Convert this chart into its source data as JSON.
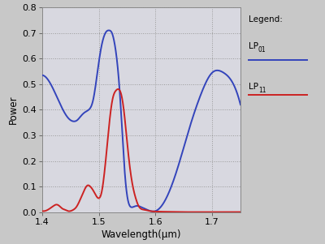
{
  "title": "",
  "xlabel": "Wavelength(μm)",
  "ylabel": "Power",
  "xlim": [
    1.4,
    1.75
  ],
  "ylim": [
    0.0,
    0.8
  ],
  "xticks": [
    1.4,
    1.5,
    1.6,
    1.7
  ],
  "yticks": [
    0.0,
    0.1,
    0.2,
    0.3,
    0.4,
    0.5,
    0.6,
    0.7,
    0.8
  ],
  "fig_bg_color": "#c8c8c8",
  "plot_bg_color": "#d8d8e0",
  "blue_color": "#3344bb",
  "red_color": "#cc2222",
  "legend_title": "Legend:",
  "lp01_label": "LP",
  "lp01_sub": "01",
  "lp11_label": "LP",
  "lp11_sub": "11",
  "blue_x": [
    1.4,
    1.415,
    1.43,
    1.445,
    1.455,
    1.462,
    1.468,
    1.475,
    1.482,
    1.49,
    1.497,
    1.503,
    1.508,
    1.513,
    1.518,
    1.523,
    1.528,
    1.533,
    1.538,
    1.542,
    1.547,
    1.552,
    1.557,
    1.562,
    1.567,
    1.575,
    1.585,
    1.6,
    1.62,
    1.64,
    1.66,
    1.68,
    1.7,
    1.72,
    1.735,
    1.75
  ],
  "blue_y": [
    0.535,
    0.5,
    0.43,
    0.37,
    0.355,
    0.36,
    0.375,
    0.39,
    0.4,
    0.44,
    0.54,
    0.63,
    0.68,
    0.705,
    0.71,
    0.7,
    0.655,
    0.57,
    0.43,
    0.28,
    0.12,
    0.04,
    0.02,
    0.022,
    0.025,
    0.02,
    0.01,
    0.005,
    0.06,
    0.18,
    0.33,
    0.46,
    0.545,
    0.545,
    0.51,
    0.42
  ],
  "red_x": [
    1.4,
    1.41,
    1.42,
    1.425,
    1.43,
    1.435,
    1.44,
    1.445,
    1.45,
    1.455,
    1.46,
    1.465,
    1.47,
    1.475,
    1.48,
    1.485,
    1.49,
    1.495,
    1.5,
    1.505,
    1.51,
    1.515,
    1.52,
    1.525,
    1.53,
    1.535,
    1.54,
    1.545,
    1.55,
    1.555,
    1.56,
    1.565,
    1.57,
    1.58,
    1.59,
    1.6,
    1.62,
    1.65,
    1.7,
    1.75
  ],
  "red_y": [
    0.005,
    0.01,
    0.025,
    0.03,
    0.025,
    0.015,
    0.01,
    0.005,
    0.005,
    0.01,
    0.02,
    0.04,
    0.065,
    0.09,
    0.105,
    0.1,
    0.085,
    0.065,
    0.055,
    0.08,
    0.16,
    0.27,
    0.38,
    0.45,
    0.475,
    0.48,
    0.455,
    0.38,
    0.27,
    0.17,
    0.1,
    0.055,
    0.025,
    0.01,
    0.005,
    0.003,
    0.002,
    0.001,
    0.001,
    0.001
  ]
}
